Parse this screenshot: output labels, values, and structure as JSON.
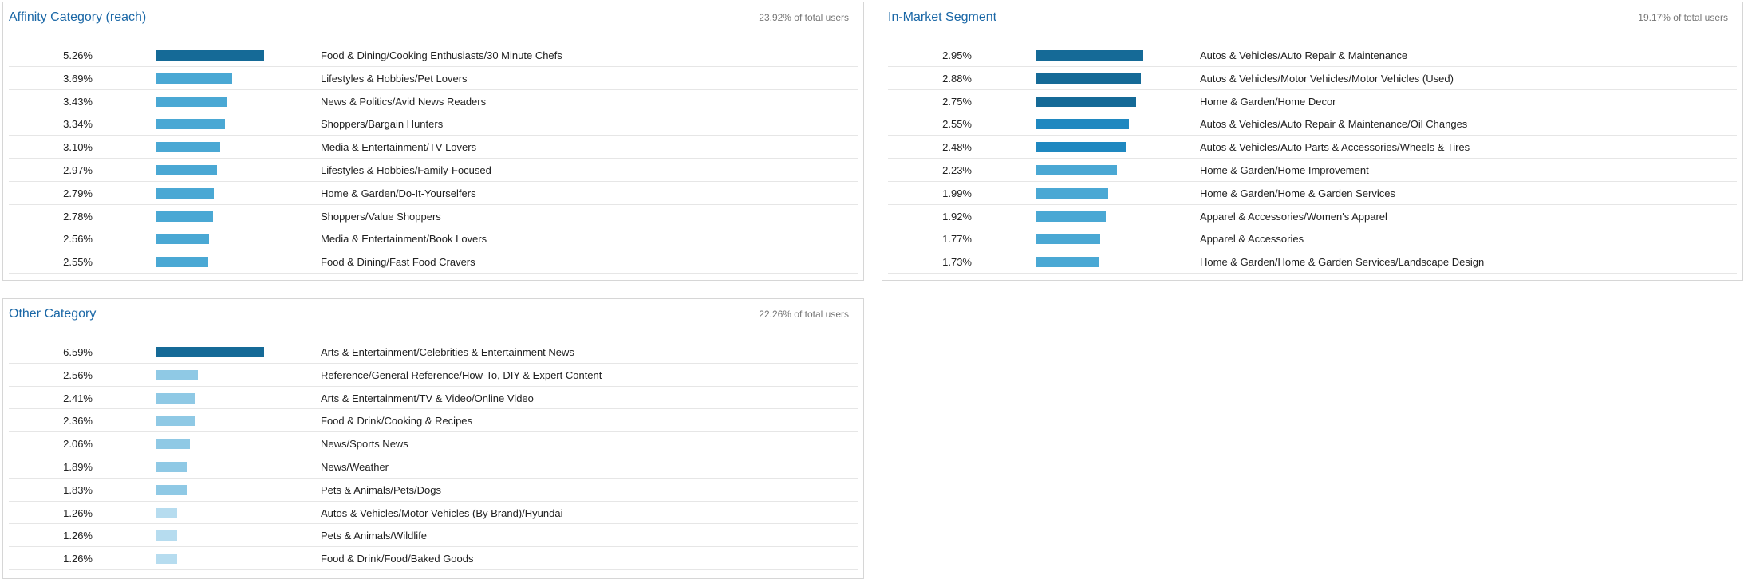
{
  "panels": [
    {
      "id": "affinity",
      "title": "Affinity Category (reach)",
      "subtitle": "23.92% of total users",
      "rows": [
        {
          "percent_label": "5.26%",
          "value": 5.26,
          "label": "Food & Dining/Cooking Enthusiasts/30 Minute Chefs"
        },
        {
          "percent_label": "3.69%",
          "value": 3.69,
          "label": "Lifestyles & Hobbies/Pet Lovers"
        },
        {
          "percent_label": "3.43%",
          "value": 3.43,
          "label": "News & Politics/Avid News Readers"
        },
        {
          "percent_label": "3.34%",
          "value": 3.34,
          "label": "Shoppers/Bargain Hunters"
        },
        {
          "percent_label": "3.10%",
          "value": 3.1,
          "label": "Media & Entertainment/TV Lovers"
        },
        {
          "percent_label": "2.97%",
          "value": 2.97,
          "label": "Lifestyles & Hobbies/Family-Focused"
        },
        {
          "percent_label": "2.79%",
          "value": 2.79,
          "label": "Home & Garden/Do-It-Yourselfers"
        },
        {
          "percent_label": "2.78%",
          "value": 2.78,
          "label": "Shoppers/Value Shoppers"
        },
        {
          "percent_label": "2.56%",
          "value": 2.56,
          "label": "Media & Entertainment/Book Lovers"
        },
        {
          "percent_label": "2.55%",
          "value": 2.55,
          "label": "Food & Dining/Fast Food Cravers"
        }
      ]
    },
    {
      "id": "inmarket",
      "title": "In-Market Segment",
      "subtitle": "19.17% of total users",
      "rows": [
        {
          "percent_label": "2.95%",
          "value": 2.95,
          "label": "Autos & Vehicles/Auto Repair & Maintenance"
        },
        {
          "percent_label": "2.88%",
          "value": 2.88,
          "label": "Autos & Vehicles/Motor Vehicles/Motor Vehicles (Used)"
        },
        {
          "percent_label": "2.75%",
          "value": 2.75,
          "label": "Home & Garden/Home Decor"
        },
        {
          "percent_label": "2.55%",
          "value": 2.55,
          "label": "Autos & Vehicles/Auto Repair & Maintenance/Oil Changes"
        },
        {
          "percent_label": "2.48%",
          "value": 2.48,
          "label": "Autos & Vehicles/Auto Parts & Accessories/Wheels & Tires"
        },
        {
          "percent_label": "2.23%",
          "value": 2.23,
          "label": "Home & Garden/Home Improvement"
        },
        {
          "percent_label": "1.99%",
          "value": 1.99,
          "label": "Home & Garden/Home & Garden Services"
        },
        {
          "percent_label": "1.92%",
          "value": 1.92,
          "label": "Apparel & Accessories/Women's Apparel"
        },
        {
          "percent_label": "1.77%",
          "value": 1.77,
          "label": "Apparel & Accessories"
        },
        {
          "percent_label": "1.73%",
          "value": 1.73,
          "label": "Home & Garden/Home & Garden Services/Landscape Design"
        }
      ]
    },
    {
      "id": "other",
      "title": "Other Category",
      "subtitle": "22.26% of total users",
      "rows": [
        {
          "percent_label": "6.59%",
          "value": 6.59,
          "label": "Arts & Entertainment/Celebrities & Entertainment News"
        },
        {
          "percent_label": "2.56%",
          "value": 2.56,
          "label": "Reference/General Reference/How-To, DIY & Expert Content"
        },
        {
          "percent_label": "2.41%",
          "value": 2.41,
          "label": "Arts & Entertainment/TV & Video/Online Video"
        },
        {
          "percent_label": "2.36%",
          "value": 2.36,
          "label": "Food & Drink/Cooking & Recipes"
        },
        {
          "percent_label": "2.06%",
          "value": 2.06,
          "label": "News/Sports News"
        },
        {
          "percent_label": "1.89%",
          "value": 1.89,
          "label": "News/Weather"
        },
        {
          "percent_label": "1.83%",
          "value": 1.83,
          "label": "Pets & Animals/Pets/Dogs"
        },
        {
          "percent_label": "1.26%",
          "value": 1.26,
          "label": "Autos & Vehicles/Motor Vehicles (By Brand)/Hyundai"
        },
        {
          "percent_label": "1.26%",
          "value": 1.26,
          "label": "Pets & Animals/Wildlife"
        },
        {
          "percent_label": "1.26%",
          "value": 1.26,
          "label": "Food & Drink/Food/Baked Goods"
        }
      ]
    }
  ],
  "colors": {
    "title": "#1a67a6",
    "bar_darkest": "#156a97",
    "bar_dark": "#1f88c0",
    "bar_mid": "#4aa8d4",
    "bar_light": "#8fc9e5",
    "bar_lightest": "#b6dcef"
  }
}
